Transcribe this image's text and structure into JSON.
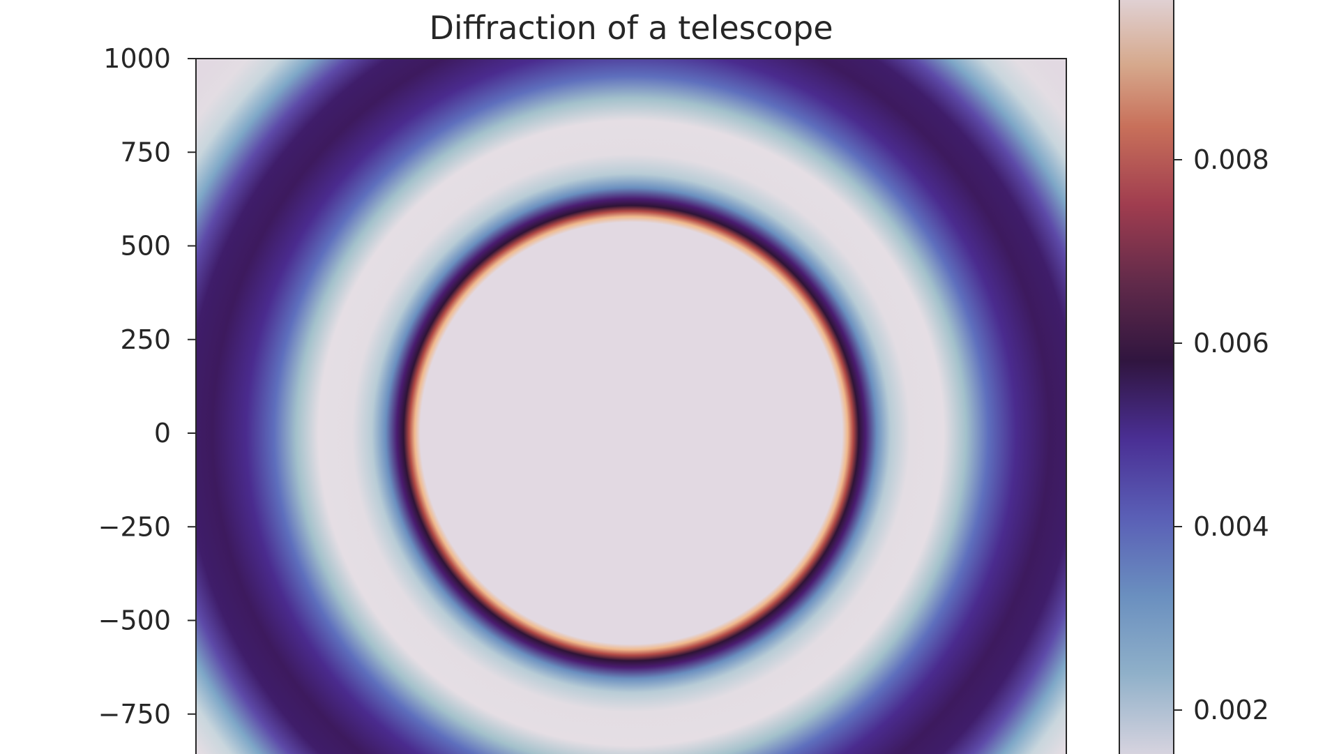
{
  "chart_data": {
    "type": "heatmap",
    "title": "Diffraction of a telescope",
    "xlabel": "",
    "ylabel": "",
    "ylim": [
      -1000,
      1000
    ],
    "xlim": [
      -1000,
      1000
    ],
    "y_ticks": [
      1000,
      750,
      500,
      250,
      0,
      -250,
      -500,
      -750
    ],
    "y_tick_labels": [
      "1000",
      "750",
      "500",
      "250",
      "0",
      "−250",
      "−500",
      "−750"
    ],
    "colormap": "twilight",
    "colorbar": {
      "range": [
        0.0,
        0.01
      ],
      "ticks": [
        0.008,
        0.006,
        0.004,
        0.002
      ],
      "tick_labels": [
        "0.008",
        "0.006",
        "0.004",
        "0.002"
      ]
    },
    "rings": [
      {
        "feature": "central disk",
        "radius": [
          0,
          460
        ],
        "value": 0.0098
      },
      {
        "feature": "bright edge",
        "radius": 475,
        "value": 0.0085
      },
      {
        "feature": "dark ring",
        "radius": 495,
        "value": 0.005
      },
      {
        "feature": "light band",
        "radius": 620,
        "value": 0.0095
      },
      {
        "feature": "dark ring",
        "radius": 950,
        "value": 0.0046
      },
      {
        "feature": "light band",
        "radius": 1210,
        "value": 0.0097
      }
    ],
    "grid": false,
    "legend": "none"
  }
}
